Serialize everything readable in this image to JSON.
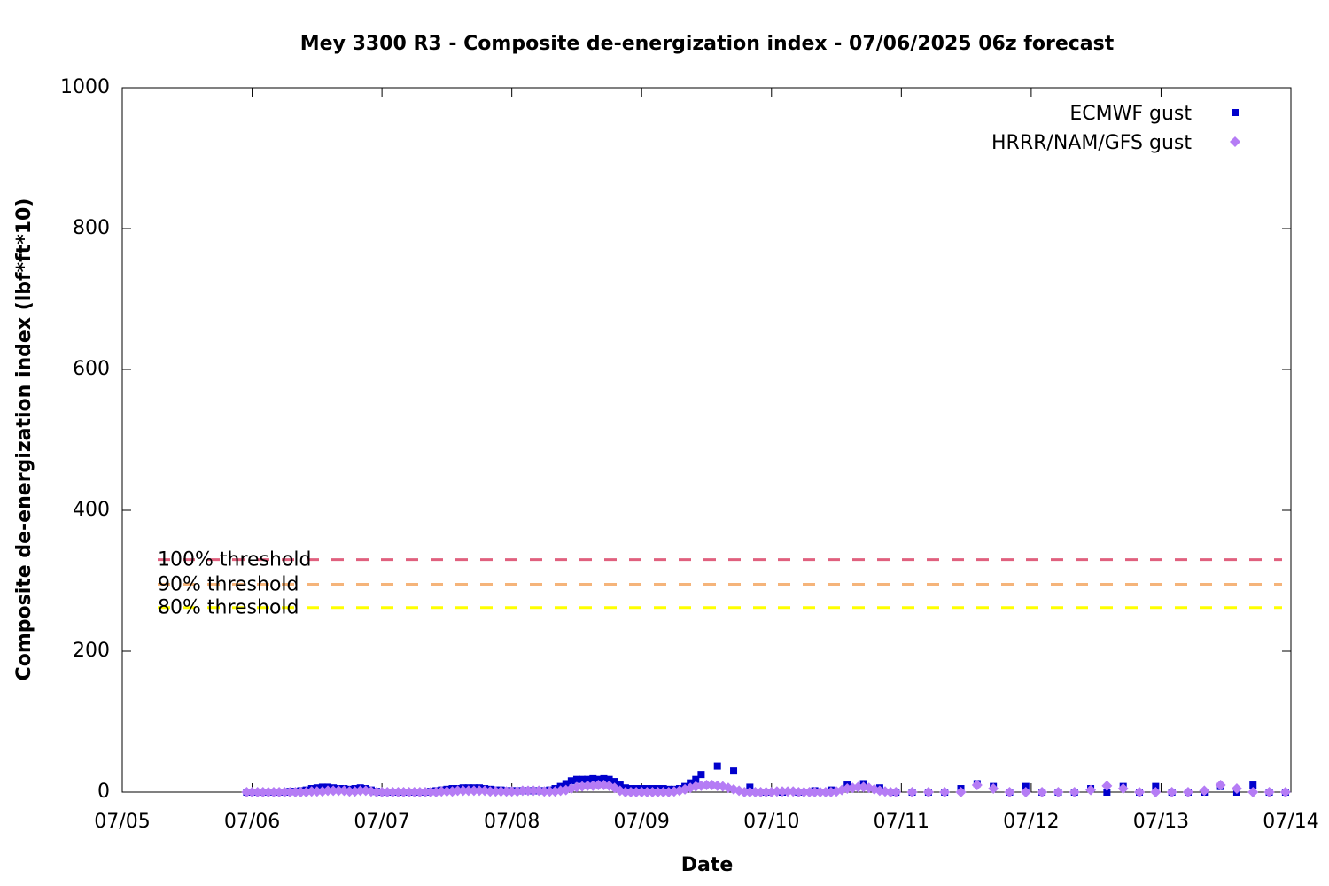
{
  "chart_data": {
    "type": "scatter",
    "title": "Mey 3300 R3 - Composite de-energization index - 07/06/2025 06z forecast",
    "x_label": "Date",
    "y_label": "Composite de-energization index (lbf*ft*10)",
    "xlim": [
      0,
      216
    ],
    "xticks": [
      {
        "value": 0,
        "label": "07/05"
      },
      {
        "value": 24,
        "label": "07/06"
      },
      {
        "value": 48,
        "label": "07/07"
      },
      {
        "value": 72,
        "label": "07/08"
      },
      {
        "value": 96,
        "label": "07/09"
      },
      {
        "value": 120,
        "label": "07/10"
      },
      {
        "value": 144,
        "label": "07/11"
      },
      {
        "value": 168,
        "label": "07/12"
      },
      {
        "value": 192,
        "label": "07/13"
      },
      {
        "value": 216,
        "label": "07/14"
      }
    ],
    "ylim": [
      0,
      1000
    ],
    "yticks": [
      0,
      200,
      400,
      600,
      800,
      1000
    ],
    "legend": "top-right",
    "thresholds": [
      {
        "name": "100% threshold",
        "value": 330,
        "color": "#e0607e"
      },
      {
        "name": "90% threshold",
        "value": 295,
        "color": "#f5b47a"
      },
      {
        "name": "80% threshold",
        "value": 262,
        "color": "#ffff00"
      }
    ],
    "series": [
      {
        "name": "ECMWF gust",
        "color": "#0000cc",
        "marker": "square",
        "x": [
          23,
          24,
          25,
          26,
          27,
          28,
          29,
          30,
          31,
          32,
          33,
          34,
          35,
          36,
          37,
          38,
          39,
          40,
          41,
          42,
          43,
          44,
          45,
          46,
          47,
          48,
          49,
          50,
          51,
          52,
          53,
          54,
          55,
          56,
          57,
          58,
          59,
          60,
          61,
          62,
          63,
          64,
          65,
          66,
          67,
          68,
          69,
          70,
          71,
          72,
          73,
          74,
          75,
          76,
          77,
          78,
          79,
          80,
          81,
          82,
          83,
          84,
          85,
          86,
          87,
          88,
          89,
          90,
          91,
          92,
          93,
          94,
          95,
          96,
          97,
          98,
          99,
          100,
          101,
          102,
          103,
          104,
          105,
          106,
          107,
          110,
          113,
          116,
          119,
          122,
          125,
          128,
          131,
          134,
          137,
          140,
          143,
          146,
          149,
          152,
          155,
          158,
          161,
          164,
          167,
          170,
          173,
          176,
          179,
          182,
          185,
          188,
          191,
          194,
          197,
          200,
          203,
          206,
          209,
          212,
          215
        ],
        "values": [
          0,
          0,
          0,
          0,
          0,
          0,
          0,
          0,
          1,
          1,
          2,
          3,
          5,
          6,
          7,
          7,
          6,
          5,
          5,
          4,
          5,
          6,
          5,
          3,
          1,
          0,
          0,
          0,
          0,
          0,
          0,
          0,
          0,
          0,
          1,
          2,
          3,
          4,
          5,
          5,
          6,
          6,
          6,
          6,
          5,
          4,
          3,
          3,
          2,
          2,
          2,
          2,
          2,
          2,
          2,
          2,
          3,
          5,
          8,
          12,
          16,
          18,
          18,
          18,
          19,
          18,
          19,
          18,
          15,
          10,
          6,
          5,
          5,
          5,
          5,
          5,
          5,
          5,
          4,
          4,
          5,
          8,
          13,
          18,
          25,
          37,
          30,
          7,
          0,
          0,
          0,
          2,
          3,
          10,
          12,
          6,
          0,
          0,
          0,
          0,
          5,
          12,
          8,
          0,
          8,
          0,
          0,
          0,
          5,
          0,
          8,
          0,
          8,
          0,
          0,
          0,
          8,
          0,
          10,
          0,
          0
        ]
      },
      {
        "name": "HRRR/NAM/GFS gust",
        "color": "#b57cf5",
        "marker": "diamond",
        "x": [
          23,
          24,
          25,
          26,
          27,
          28,
          29,
          30,
          31,
          32,
          33,
          34,
          35,
          36,
          37,
          38,
          39,
          40,
          41,
          42,
          43,
          44,
          45,
          46,
          47,
          48,
          49,
          50,
          51,
          52,
          53,
          54,
          55,
          56,
          57,
          58,
          59,
          60,
          61,
          62,
          63,
          64,
          65,
          66,
          67,
          68,
          69,
          70,
          71,
          72,
          73,
          74,
          75,
          76,
          77,
          78,
          79,
          80,
          81,
          82,
          83,
          84,
          85,
          86,
          87,
          88,
          89,
          90,
          91,
          92,
          93,
          94,
          95,
          96,
          97,
          98,
          99,
          100,
          101,
          102,
          103,
          104,
          105,
          106,
          107,
          108,
          109,
          110,
          111,
          112,
          113,
          114,
          115,
          116,
          117,
          118,
          119,
          120,
          121,
          122,
          123,
          124,
          125,
          126,
          127,
          128,
          129,
          130,
          131,
          132,
          133,
          134,
          135,
          136,
          137,
          138,
          139,
          140,
          141,
          142,
          143,
          146,
          149,
          152,
          155,
          158,
          161,
          164,
          167,
          170,
          173,
          176,
          179,
          182,
          185,
          188,
          191,
          194,
          197,
          200,
          203,
          206,
          209,
          212,
          215
        ],
        "values": [
          0,
          0,
          0,
          0,
          0,
          0,
          0,
          0,
          0,
          0,
          0,
          0,
          1,
          1,
          1,
          2,
          2,
          2,
          2,
          1,
          1,
          2,
          2,
          1,
          0,
          0,
          0,
          0,
          0,
          0,
          0,
          0,
          0,
          0,
          0,
          0,
          1,
          1,
          1,
          2,
          2,
          2,
          2,
          2,
          2,
          1,
          1,
          1,
          1,
          1,
          1,
          2,
          2,
          2,
          2,
          1,
          1,
          1,
          2,
          3,
          5,
          7,
          8,
          9,
          9,
          10,
          10,
          9,
          6,
          2,
          0,
          0,
          0,
          0,
          0,
          0,
          0,
          0,
          0,
          1,
          2,
          4,
          6,
          8,
          9,
          10,
          10,
          9,
          8,
          6,
          4,
          2,
          0,
          0,
          0,
          0,
          0,
          0,
          1,
          1,
          1,
          1,
          0,
          0,
          0,
          0,
          0,
          0,
          0,
          1,
          3,
          5,
          6,
          7,
          7,
          6,
          4,
          2,
          1,
          0,
          0,
          0,
          0,
          0,
          0,
          10,
          5,
          0,
          0,
          0,
          0,
          0,
          3,
          9,
          5,
          0,
          0,
          0,
          0,
          2,
          10,
          5,
          0,
          0,
          0
        ]
      }
    ]
  }
}
